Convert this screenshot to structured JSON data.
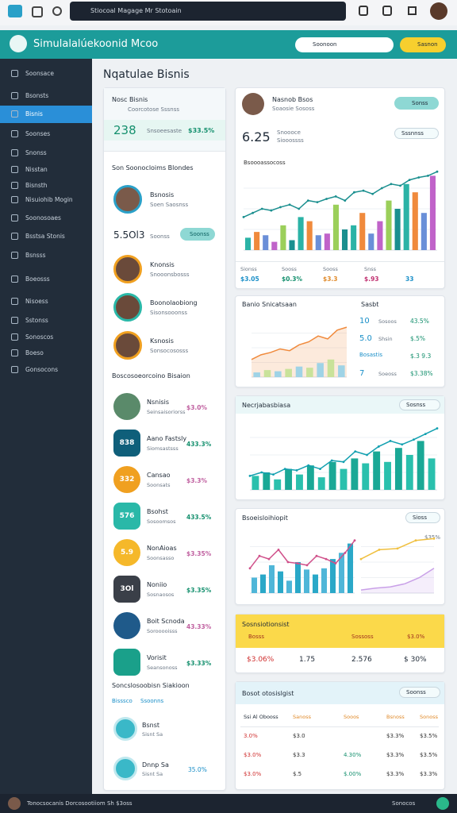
{
  "topbar": {
    "search": "Stiocoal Magage Mr Stotoain"
  },
  "header": {
    "title": "Simulalalúekoonid Mcoo",
    "select": "Soonoon",
    "button": "Sasnon"
  },
  "sidebar": {
    "active": 2,
    "items": [
      "Soonsace",
      "Bsonsts",
      "Bisnis",
      "Soonses",
      "Snonss",
      "Nisstan",
      "Bisnsth",
      "Nisuiohib Mogin",
      "Soonosoaes",
      "Bsstsa Stonis",
      "Bsnsss",
      "Boeosss",
      "Nisoess",
      "Sstonss",
      "Sonoscos",
      "Boeso",
      "Gonsocons"
    ]
  },
  "page_title": "Nqatulae Bisnis",
  "left": {
    "card_title": "Nosc Bisnis",
    "card_sub": "Coorcotose Sssnss",
    "big": "238",
    "big_label": "Snsoeesaste",
    "big_change": "$33.5%",
    "section1": "Son Soonocloims Blondes",
    "profile_name": "Bsnosis",
    "profile_sub": "Soen Saosnss",
    "amount": "5.5Ol3",
    "amount_label": "Soonss",
    "amount_button": "Soonss",
    "people": [
      {
        "name": "Knonsis",
        "sub": "Snooonsbosss"
      },
      {
        "name": "Boonolaobiong",
        "sub": "Sisonsooonss"
      },
      {
        "name": "Ksnosis",
        "sub": "Sonsocososss"
      }
    ],
    "section2": "Boscosoeorcoino Bisaion",
    "rows": [
      {
        "badge": null,
        "color": "#5a8a6a",
        "name": "Nsnisis",
        "sub": "Seinsaisoriorss",
        "value": "$3.0%"
      },
      {
        "badge": "838",
        "color": "#0f5f7a",
        "name": "Aano Fastsly",
        "sub": "Siomsastsss",
        "value": "433.3%"
      },
      {
        "badge": "332",
        "color": "#f0a020",
        "name": "Cansao",
        "sub": "Soonsats",
        "value": "$3.3%"
      },
      {
        "badge": "576",
        "color": "#2ab8a8",
        "name": "Bsohst",
        "sub": "Sosoomsos",
        "value": "433.5%"
      },
      {
        "badge": "5.9",
        "color": "#f5b82a",
        "name": "NonAioas",
        "sub": "Soonsasso",
        "value": "$3.35%"
      },
      {
        "badge": "3Ol",
        "color": "#3a3f48",
        "name": "Noniio",
        "sub": "Sosnaosos",
        "value": "$3.35%"
      },
      {
        "badge": null,
        "color": "#1f5a8a",
        "name": "Boit Scnoda",
        "sub": "Sorooooisss",
        "value": "43.33%"
      },
      {
        "badge": null,
        "color": "#1aa08a",
        "name": "Vorisit",
        "sub": "Seansonoss",
        "value": "$3.33%"
      }
    ],
    "section3": "Soncslosoobisn Siakioon",
    "tabs": [
      "Bisssco",
      "Ssoonns"
    ],
    "rows2": [
      {
        "name": "Bsnst",
        "sub": "Sisnt Sa",
        "value": null
      },
      {
        "name": "Dnnp Sa",
        "sub": "Sisnt Sa",
        "value": "35.0%"
      }
    ]
  },
  "card_a": {
    "name": "Nasnob Bsos",
    "sub": "Soaosie Sososs",
    "button": "Sonss",
    "big": "6.25",
    "lines": [
      "Snoooce",
      "Siooossss"
    ],
    "select": "Sssnnss",
    "chart_title": "Bsoooassocoss",
    "chart": {
      "ylim": [
        0,
        100
      ],
      "colors": [
        "#2bb3a6",
        "#f08a3c",
        "#6a8fd8",
        "#c063c9",
        "#9bcf5a",
        "#1a8f8f"
      ],
      "bars": [
        15,
        22,
        18,
        10,
        30,
        12,
        40,
        35,
        18,
        20,
        55,
        25,
        30,
        45,
        20,
        35,
        60,
        50,
        80,
        70,
        45,
        90
      ],
      "line": [
        40,
        45,
        50,
        48,
        52,
        55,
        50,
        60,
        58,
        62,
        65,
        60,
        70,
        72,
        68,
        75,
        80,
        78,
        85,
        88,
        90,
        95
      ],
      "line_color": "#1a8f8f"
    },
    "stats": [
      {
        "label": "Sionss",
        "value": "$3.05"
      },
      {
        "label": "Sooss",
        "value": "$0.3%"
      },
      {
        "label": "Sooss",
        "value": "$3.3"
      },
      {
        "label": "Snss",
        "value": "$.93"
      },
      {
        "label": null,
        "value": "33"
      }
    ]
  },
  "card_b": {
    "title": "Banio Snicatsaan",
    "side": "Sasbt",
    "chart": {
      "ylim": [
        0,
        100
      ],
      "area": [
        30,
        38,
        42,
        48,
        45,
        55,
        60,
        70,
        65,
        80,
        85
      ],
      "area_color": "#f08a3c",
      "bars": [
        8,
        12,
        10,
        14,
        18,
        16,
        24,
        30,
        20
      ],
      "colors": [
        "#9fd3e6",
        "#c9e29a"
      ]
    },
    "stats": [
      {
        "value": "10",
        "label": "Sosoos",
        "change": "43.5%"
      },
      {
        "value": "5.0",
        "label": "Shsin",
        "change": "$.5%"
      },
      {
        "value": "Bosastis",
        "label": null,
        "change": "$.3 9.3"
      },
      {
        "value": "7",
        "label": "Soeoss",
        "change": "$3.38%"
      }
    ]
  },
  "card_c": {
    "title": "Necrjabasbiasa",
    "select": "Sosnss",
    "chart": {
      "ylim": [
        0,
        100
      ],
      "colors": [
        "#2ac0ad",
        "#1aa896"
      ],
      "bars": [
        20,
        25,
        15,
        30,
        22,
        35,
        18,
        40,
        30,
        45,
        38,
        55,
        40,
        60,
        50,
        70,
        45
      ],
      "line": [
        20,
        25,
        22,
        30,
        28,
        35,
        30,
        42,
        40,
        55,
        50,
        62,
        70,
        65,
        72,
        80,
        88
      ],
      "line_color": "#12a0b0"
    }
  },
  "card_d": {
    "title": "Bsoeisloihiopit",
    "select": "Sioss",
    "side": "$35%",
    "chart": {
      "ylim": [
        0,
        100
      ],
      "colors": [
        "#4fb6d8",
        "#2aa8c8"
      ],
      "bars": [
        25,
        30,
        45,
        35,
        20,
        50,
        38,
        30,
        40,
        55,
        65,
        80
      ],
      "line": [
        40,
        60,
        55,
        70,
        50,
        48,
        45,
        60,
        55,
        48,
        65,
        85
      ],
      "line_color": "#d0508a"
    },
    "mini": {
      "ylim": [
        0,
        100
      ],
      "line": [
        55,
        70,
        72,
        85,
        88
      ],
      "line_color": "#f0c040",
      "area": [
        5,
        8,
        10,
        15,
        25,
        40
      ],
      "area_color": "#c9a0e8"
    }
  },
  "card_e": {
    "title": "Sosnsiotionsist",
    "labels": [
      "Bosss",
      "Sossoss",
      "$3.0%"
    ],
    "values": [
      "$3.06%",
      "1.75",
      "2.576",
      "$ 30%"
    ]
  },
  "card_f": {
    "title": "Bosot otosislgist",
    "select": "Soonss",
    "head": [
      "Ssi Al Obooss",
      "Sanoss",
      "Sooos",
      "Bsnoss",
      "Sonoss"
    ],
    "rows": [
      [
        "3.0%",
        "$3.0",
        "",
        "$3.3%",
        "$3.5%"
      ],
      [
        "$3.0%",
        "$3.3",
        "4.30%",
        "$3.3%",
        "$3.5%"
      ],
      [
        "$3.0%",
        "$.5",
        "$.00%",
        "$3.3%",
        "$3.3%"
      ]
    ]
  },
  "footer": {
    "left": "Tonocsocanis Dorcosootiiom Sh $3oss",
    "right": "Sonocos"
  }
}
